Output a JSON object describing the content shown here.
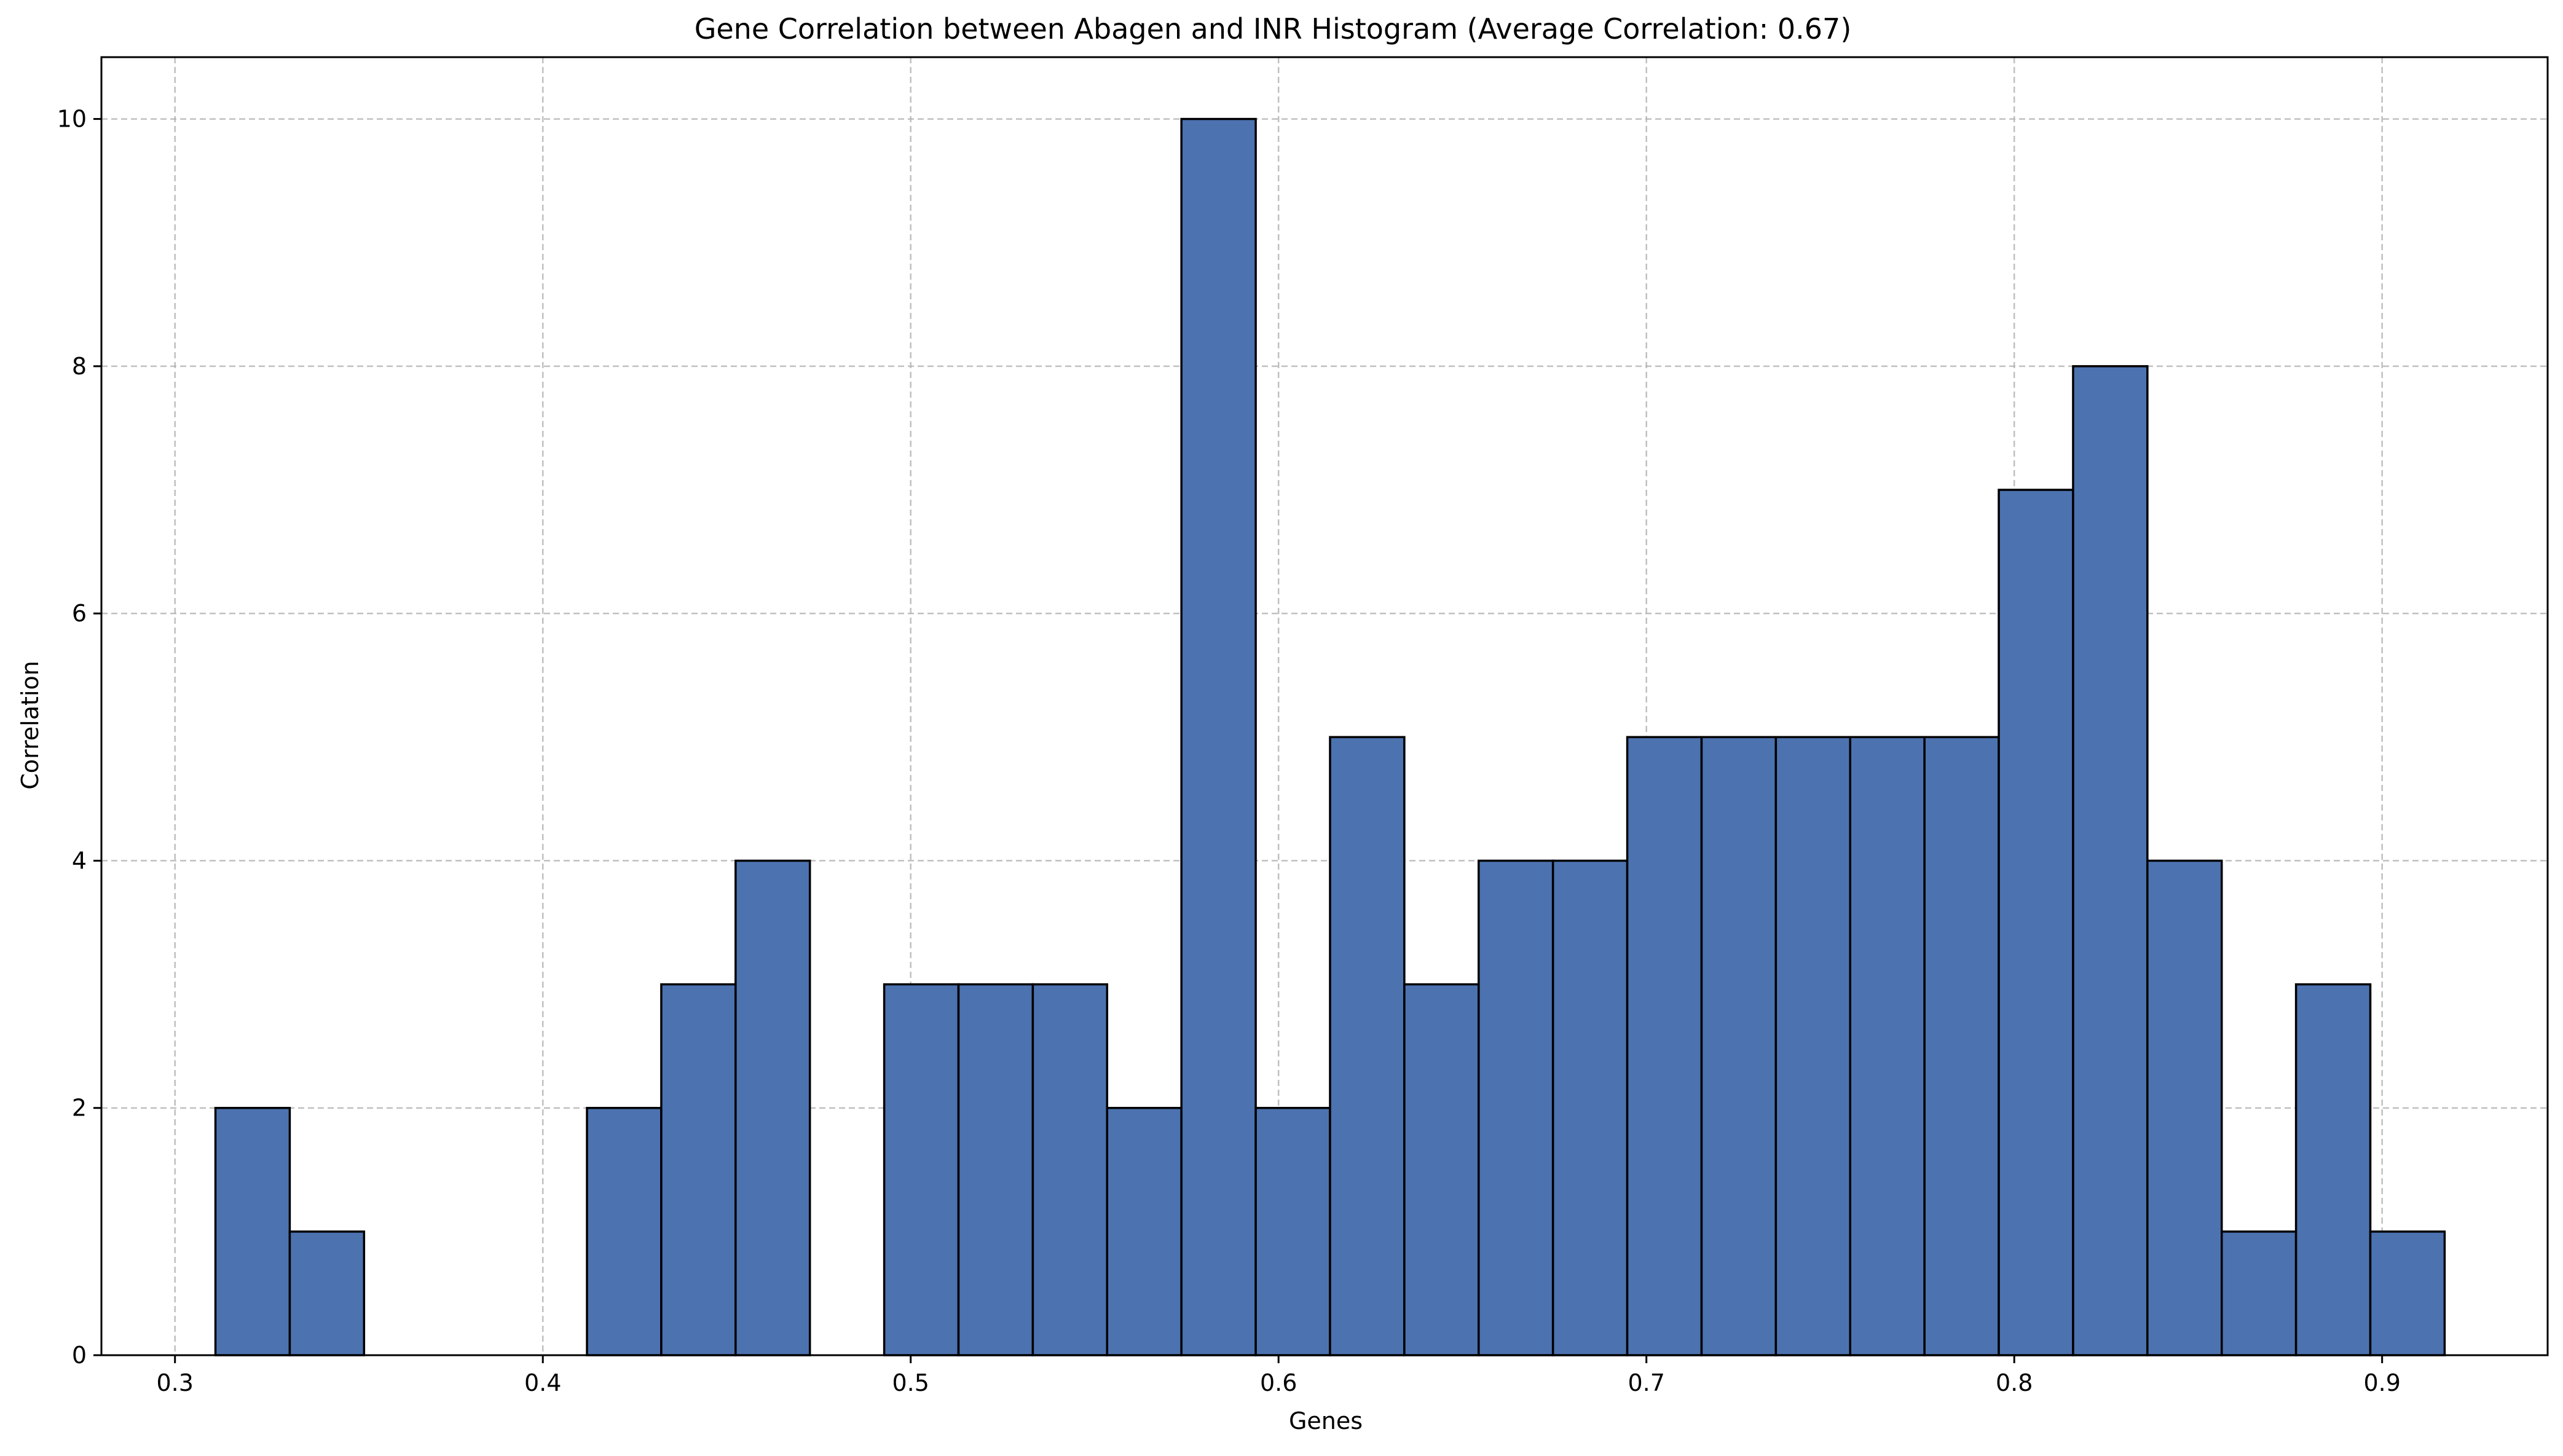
{
  "chart_data": {
    "type": "bar",
    "title": "Gene Correlation between Abagen and INR Histogram (Average Correlation: 0.67)",
    "xlabel": "Genes",
    "ylabel": "Correlation",
    "xlim": [
      0.28,
      0.945
    ],
    "ylim": [
      0,
      10.5
    ],
    "xticks": [
      0.3,
      0.4,
      0.5,
      0.6,
      0.7,
      0.8,
      0.9
    ],
    "xtick_labels": [
      "0.3",
      "0.4",
      "0.5",
      "0.6",
      "0.7",
      "0.8",
      "0.9"
    ],
    "yticks": [
      0,
      2,
      4,
      6,
      8,
      10
    ],
    "ytick_labels": [
      "0",
      "2",
      "4",
      "6",
      "8",
      "10"
    ],
    "grid": true,
    "bar_color": "#4c72b0",
    "edge_color": "#000000",
    "bin_edges": [
      0.311,
      0.3312,
      0.3514,
      0.3716,
      0.3918,
      0.412,
      0.4322,
      0.4524,
      0.4726,
      0.4928,
      0.513,
      0.5332,
      0.5534,
      0.5736,
      0.5938,
      0.614,
      0.6342,
      0.6544,
      0.6746,
      0.6948,
      0.715,
      0.7352,
      0.7554,
      0.7756,
      0.7958,
      0.816,
      0.8362,
      0.8564,
      0.8766,
      0.8968,
      0.917
    ],
    "counts": [
      2,
      1,
      0,
      0,
      0,
      2,
      3,
      4,
      0,
      3,
      3,
      3,
      2,
      10,
      2,
      5,
      3,
      4,
      4,
      5,
      5,
      5,
      5,
      5,
      7,
      8,
      4,
      1,
      3,
      1
    ]
  }
}
